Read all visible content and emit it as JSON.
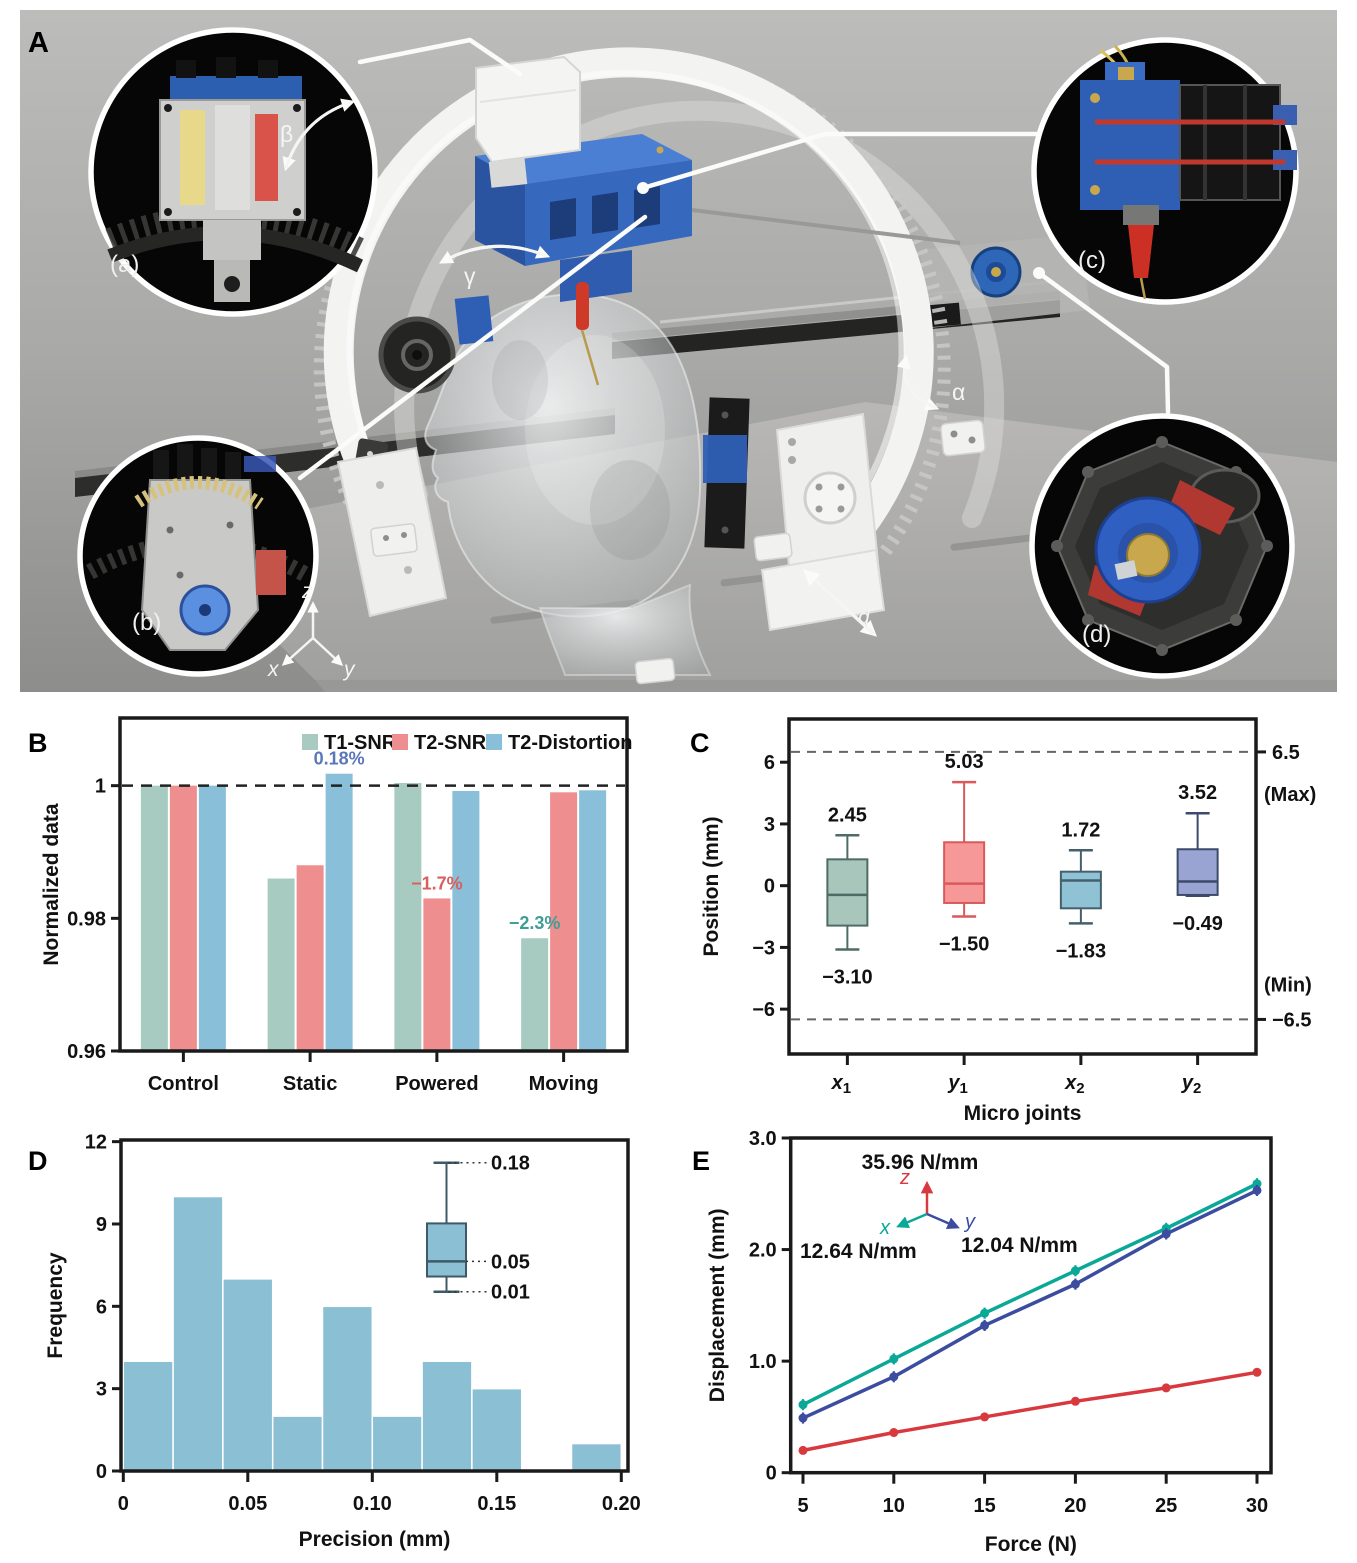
{
  "panel_a": {
    "panel_label": "A",
    "callout_labels": {
      "a": "(a)",
      "b": "(b)",
      "c": "(c)",
      "d": "(d)"
    },
    "angle_labels": {
      "beta": "β",
      "gamma": "γ",
      "alpha": "α"
    },
    "distance_label": "d",
    "axis_labels": {
      "x": "x",
      "y": "y",
      "z": "z"
    }
  },
  "chart_data": [
    {
      "id": "panel_b",
      "panel_label": "B",
      "type": "bar",
      "ylabel": "Normalized data",
      "categories": [
        "Control",
        "Static",
        "Powered",
        "Moving"
      ],
      "series": [
        {
          "name": "T1-SNR",
          "color": "#a7cbc0",
          "values": [
            1.0,
            0.986,
            1.0004,
            0.977
          ]
        },
        {
          "name": "T2-SNR",
          "color": "#ef8e8e",
          "values": [
            1.0,
            0.988,
            0.983,
            0.999
          ]
        },
        {
          "name": "T2-Distortion",
          "color": "#8abfd9",
          "values": [
            1.0,
            1.0018,
            0.9992,
            0.9993
          ]
        }
      ],
      "ylim": [
        0.96,
        1.0102
      ],
      "yticks": [
        {
          "v": 0.96,
          "label": "0.96"
        },
        {
          "v": 0.98,
          "label": "0.98"
        },
        {
          "v": 1,
          "label": "1"
        }
      ],
      "baseline": 1.0,
      "grid": false,
      "legend_position": "top-right",
      "annotations": [
        {
          "ci": 1,
          "si": 2,
          "text": "0.18%",
          "color": "#5977b9"
        },
        {
          "ci": 2,
          "si": 1,
          "text": "−1.7%",
          "color": "#d95f5f"
        },
        {
          "ci": 3,
          "si": 0,
          "text": "−2.3%",
          "color": "#3f9d94"
        }
      ]
    },
    {
      "id": "panel_c",
      "panel_label": "C",
      "type": "boxplot",
      "ylabel": "Position (mm)",
      "xlabel": "Micro joints",
      "ylim": [
        -8.18,
        8.1
      ],
      "yticks": [
        {
          "v": -6,
          "label": "−6"
        },
        {
          "v": -3,
          "label": "−3"
        },
        {
          "v": 0,
          "label": "0"
        },
        {
          "v": 3,
          "label": "3"
        },
        {
          "v": 6,
          "label": "6"
        }
      ],
      "limit_lines": [
        {
          "v": 6.5,
          "label": "6.5",
          "caption": "(Max)"
        },
        {
          "v": -6.5,
          "label": "−6.5",
          "caption": "(Min)"
        }
      ],
      "boxes": [
        {
          "label_base": "x",
          "label_sub": "1",
          "min": -3.1,
          "q1": -1.94,
          "median": -0.45,
          "q3": 1.28,
          "max": 2.45,
          "max_label": "2.45",
          "min_label": "−3.10",
          "fill": "#a9c6bc",
          "stroke": "#4f6b66"
        },
        {
          "label_base": "y",
          "label_sub": "1",
          "min": -1.5,
          "q1": -0.84,
          "median": 0.1,
          "q3": 2.11,
          "max": 5.03,
          "max_label": "5.03",
          "min_label": "−1.50",
          "fill": "#f59897",
          "stroke": "#d9595c"
        },
        {
          "label_base": "x",
          "label_sub": "2",
          "min": -1.83,
          "q1": -1.1,
          "median": 0.25,
          "q3": 0.68,
          "max": 1.72,
          "max_label": "1.72",
          "min_label": "−1.83",
          "fill": "#8fc2d4",
          "stroke": "#44606c"
        },
        {
          "label_base": "y",
          "label_sub": "2",
          "min": -0.49,
          "q1": -0.45,
          "median": 0.2,
          "q3": 1.77,
          "max": 3.52,
          "max_label": "3.52",
          "min_label": "−0.49",
          "fill": "#9aa4d2",
          "stroke": "#3c4a6b"
        }
      ]
    },
    {
      "id": "panel_d",
      "panel_label": "D",
      "type": "histogram",
      "ylabel": "Frequency",
      "xlabel": "Precision (mm)",
      "bin_start": 0,
      "bin_width": 0.02,
      "values": [
        4,
        10,
        7,
        2,
        6,
        2,
        4,
        3,
        0,
        1
      ],
      "bar_color": "#8bbfd4",
      "ylim": [
        0,
        12.06
      ],
      "yticks": [
        {
          "v": 0,
          "label": "0"
        },
        {
          "v": 3,
          "label": "3"
        },
        {
          "v": 6,
          "label": "6"
        },
        {
          "v": 9,
          "label": "9"
        },
        {
          "v": 12,
          "label": "12"
        }
      ],
      "xticks": [
        {
          "v": 0,
          "label": "0"
        },
        {
          "v": 0.05,
          "label": "0.05"
        },
        {
          "v": 0.1,
          "label": "0.10"
        },
        {
          "v": 0.15,
          "label": "0.15"
        },
        {
          "v": 0.2,
          "label": "0.20"
        }
      ],
      "inset_boxplot": {
        "min": 0.01,
        "q1": 0.03,
        "median": 0.05,
        "q3": 0.1,
        "max": 0.18,
        "labels": {
          "max": "0.18",
          "median": "0.05",
          "min": "0.01"
        },
        "fill": "#8bbfd4",
        "stroke": "#3f5a66"
      }
    },
    {
      "id": "panel_e",
      "panel_label": "E",
      "type": "line",
      "ylabel": "Displacement (mm)",
      "xlabel": "Force (N)",
      "x": [
        5,
        10,
        15,
        20,
        25,
        30
      ],
      "series": [
        {
          "name": "z",
          "stiffness_label": "35.96 N/mm",
          "color": "#d8393f",
          "values": [
            0.2,
            0.36,
            0.5,
            0.64,
            0.76,
            0.9
          ]
        },
        {
          "name": "x",
          "stiffness_label": "12.64 N/mm",
          "color": "#0aa896",
          "values": [
            0.61,
            1.02,
            1.43,
            1.81,
            2.19,
            2.59
          ]
        },
        {
          "name": "y",
          "stiffness_label": "12.04 N/mm",
          "color": "#3c4da0",
          "values": [
            0.49,
            0.86,
            1.32,
            1.69,
            2.14,
            2.53
          ]
        }
      ],
      "ylim": [
        0,
        3.0
      ],
      "yticks": [
        {
          "v": 0,
          "label": "0"
        },
        {
          "v": 1,
          "label": "1.0"
        },
        {
          "v": 2,
          "label": "2.0"
        },
        {
          "v": 3,
          "label": "3.0"
        }
      ],
      "xticks": [
        {
          "v": 5,
          "label": "5"
        },
        {
          "v": 10,
          "label": "10"
        },
        {
          "v": 15,
          "label": "15"
        },
        {
          "v": 20,
          "label": "20"
        },
        {
          "v": 25,
          "label": "25"
        },
        {
          "v": 30,
          "label": "30"
        }
      ],
      "triad_labels": {
        "x": "x",
        "y": "y",
        "z": "z"
      }
    }
  ]
}
